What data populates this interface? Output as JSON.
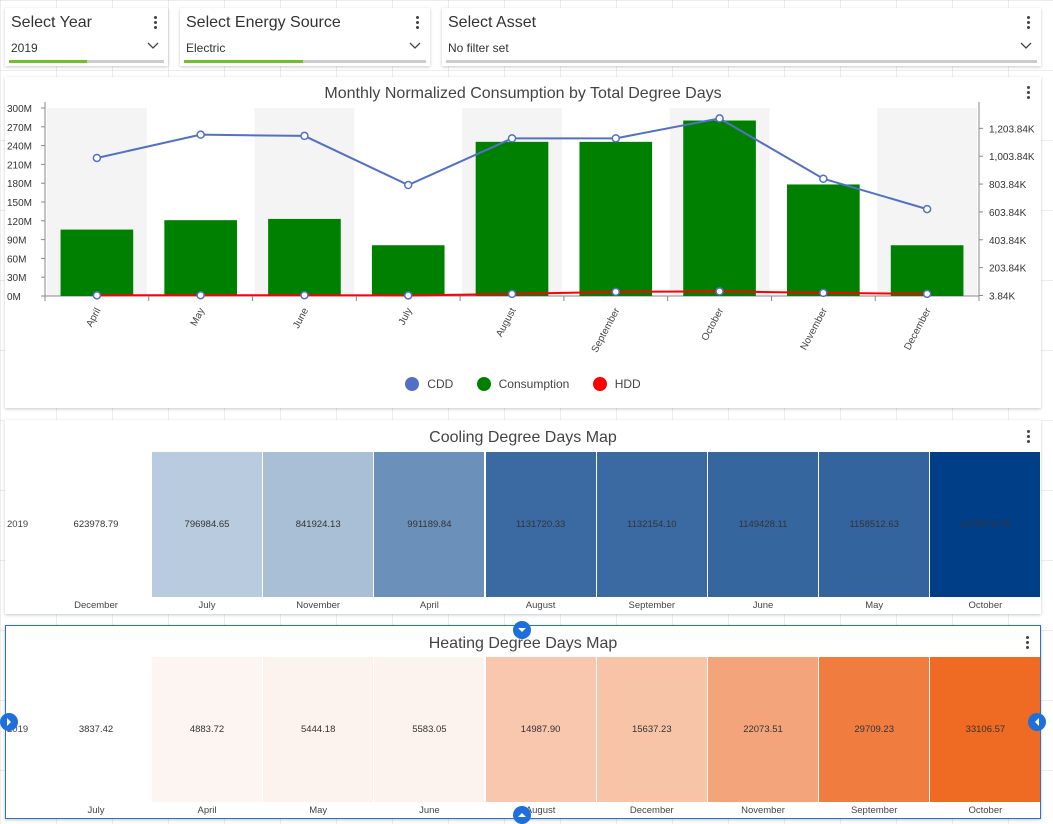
{
  "slicers": [
    {
      "title": "Select Year",
      "value": "2019"
    },
    {
      "title": "Select Energy Source",
      "value": "Electric"
    },
    {
      "title": "Select Asset",
      "value": "No filter set"
    }
  ],
  "combo_chart": {
    "title": "Monthly Normalized Consumption by Total Degree Days",
    "legend": [
      {
        "label": "CDD",
        "color": "#5470c6"
      },
      {
        "label": "Consumption",
        "color": "#008000"
      },
      {
        "label": "HDD",
        "color": "#ff0000"
      }
    ]
  },
  "chart_data": [
    {
      "type": "bar",
      "title": "Monthly Normalized Consumption by Total Degree Days",
      "categories": [
        "April",
        "May",
        "June",
        "July",
        "August",
        "September",
        "October",
        "November",
        "December"
      ],
      "series": [
        {
          "name": "Consumption",
          "type": "bar",
          "axis": "left",
          "color": "#008000",
          "values": [
            106000000,
            121000000,
            123000000,
            81000000,
            246000000,
            246000000,
            280000000,
            178000000,
            81000000
          ]
        },
        {
          "name": "CDD",
          "type": "line",
          "axis": "right",
          "color": "#5470c6",
          "values": [
            991189.84,
            1158512.63,
            1149428.11,
            796984.65,
            1131720.33,
            1132154.1,
            1275373.75,
            841924.13,
            623978.79
          ]
        },
        {
          "name": "HDD",
          "type": "line",
          "axis": "right",
          "color": "#ff0000",
          "values": [
            4883.72,
            5444.18,
            5583.05,
            3837.42,
            14987.9,
            29709.23,
            33106.57,
            22073.51,
            15637.23
          ]
        }
      ],
      "y_left": {
        "ticks": [
          "0M",
          "30M",
          "60M",
          "90M",
          "120M",
          "150M",
          "180M",
          "210M",
          "240M",
          "270M",
          "300M"
        ],
        "range": [
          0,
          300000000
        ]
      },
      "y_right": {
        "ticks": [
          "3.84K",
          "203.84K",
          "403.84K",
          "603.84K",
          "803.84K",
          "1,003.84K",
          "1,203.84K"
        ],
        "range": [
          0,
          1350000
        ]
      },
      "legend_position": "bottom"
    },
    {
      "type": "heatmap",
      "title": "Cooling Degree Days Map",
      "row": "2019",
      "cells": [
        {
          "month": "December",
          "value": "623978.79",
          "color": "#ffffff"
        },
        {
          "month": "July",
          "value": "796984.65",
          "color": "#b9cbde"
        },
        {
          "month": "November",
          "value": "841924.13",
          "color": "#a8bfd6"
        },
        {
          "month": "April",
          "value": "991189.84",
          "color": "#6b91bb"
        },
        {
          "month": "August",
          "value": "1131720.33",
          "color": "#3a6aa1"
        },
        {
          "month": "September",
          "value": "1132154.10",
          "color": "#3a6aa1"
        },
        {
          "month": "June",
          "value": "1149428.11",
          "color": "#36669e"
        },
        {
          "month": "May",
          "value": "1158512.63",
          "color": "#34649d"
        },
        {
          "month": "October",
          "value": "1275373.75",
          "color": "#003f87"
        }
      ]
    },
    {
      "type": "heatmap",
      "title": "Heating Degree Days Map",
      "row": "2019",
      "cells": [
        {
          "month": "July",
          "value": "3837.42",
          "color": "#ffffff"
        },
        {
          "month": "April",
          "value": "4883.72",
          "color": "#fdf5f1"
        },
        {
          "month": "May",
          "value": "5444.18",
          "color": "#fdf3ee"
        },
        {
          "month": "June",
          "value": "5583.05",
          "color": "#fdf3ee"
        },
        {
          "month": "August",
          "value": "14987.90",
          "color": "#f8c7ad"
        },
        {
          "month": "December",
          "value": "15637.23",
          "color": "#f8c4a8"
        },
        {
          "month": "November",
          "value": "22073.51",
          "color": "#f4a47a"
        },
        {
          "month": "September",
          "value": "29709.23",
          "color": "#f17c3f"
        },
        {
          "month": "October",
          "value": "33106.57",
          "color": "#ef6a23"
        }
      ]
    }
  ]
}
